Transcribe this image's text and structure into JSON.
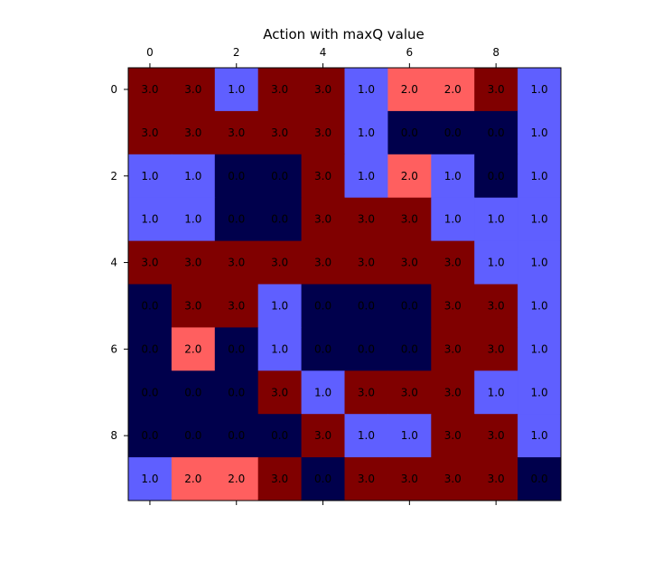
{
  "chart_data": {
    "type": "heatmap",
    "title": "Action with maxQ value",
    "xlabel": "",
    "ylabel": "",
    "x_ticks": [
      "0",
      "2",
      "4",
      "6",
      "8"
    ],
    "y_ticks": [
      "0",
      "2",
      "4",
      "6",
      "8"
    ],
    "x_tick_positions": "top-and-bottom",
    "grid": false,
    "colormap": "seismic",
    "colors": {
      "0.0": "#00004c",
      "1.0": "#5f5fff",
      "2.0": "#ff5f5f",
      "3.0": "#800000"
    },
    "values": [
      [
        3.0,
        3.0,
        1.0,
        3.0,
        3.0,
        1.0,
        2.0,
        2.0,
        3.0,
        1.0
      ],
      [
        3.0,
        3.0,
        3.0,
        3.0,
        3.0,
        1.0,
        0.0,
        0.0,
        0.0,
        1.0
      ],
      [
        1.0,
        1.0,
        0.0,
        0.0,
        3.0,
        1.0,
        2.0,
        1.0,
        0.0,
        1.0
      ],
      [
        1.0,
        1.0,
        0.0,
        0.0,
        3.0,
        3.0,
        3.0,
        1.0,
        1.0,
        1.0
      ],
      [
        3.0,
        3.0,
        3.0,
        3.0,
        3.0,
        3.0,
        3.0,
        3.0,
        1.0,
        1.0
      ],
      [
        0.0,
        3.0,
        3.0,
        1.0,
        0.0,
        0.0,
        0.0,
        3.0,
        3.0,
        1.0
      ],
      [
        0.0,
        2.0,
        0.0,
        1.0,
        0.0,
        0.0,
        0.0,
        3.0,
        3.0,
        1.0
      ],
      [
        0.0,
        0.0,
        0.0,
        3.0,
        1.0,
        3.0,
        3.0,
        3.0,
        1.0,
        1.0
      ],
      [
        0.0,
        0.0,
        0.0,
        0.0,
        3.0,
        1.0,
        1.0,
        3.0,
        3.0,
        1.0
      ],
      [
        1.0,
        2.0,
        2.0,
        3.0,
        0.0,
        3.0,
        3.0,
        3.0,
        3.0,
        0.0
      ]
    ]
  }
}
